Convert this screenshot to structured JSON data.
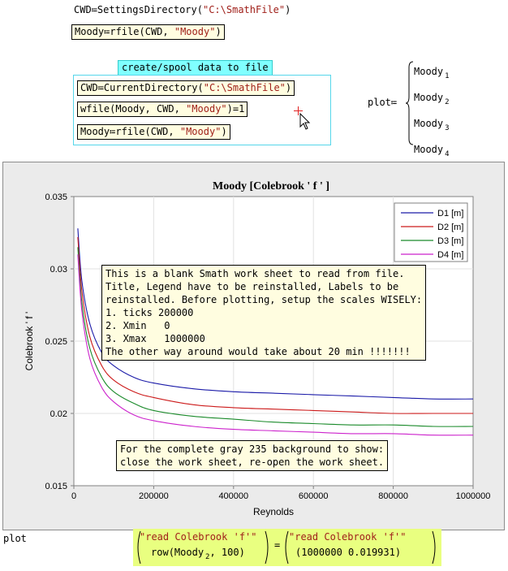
{
  "top": {
    "cwd_lhs": "CWD",
    "assign_op": "≔",
    "cwd_func": "SettingsDirectory",
    "cwd_arg": "\"C:\\SmathFile\"",
    "moody_lhs": "Moody",
    "rfile_func": "rfile",
    "rfile_arg1": "CWD",
    "rfile_arg2": "\"Moody\""
  },
  "area": {
    "title": "create/spool data to file",
    "line1_lhs": "CWD",
    "line1_func": "CurrentDirectory",
    "line1_arg": "\"C:\\SmathFile\"",
    "line2_func": "wfile",
    "line2_arg1": "Moody",
    "line2_arg2": "CWD",
    "line2_arg3": "\"Moody\"",
    "line2_result": "1",
    "line3_lhs": "Moody",
    "line3_func": "rfile",
    "line3_arg1": "CWD",
    "line3_arg2": "\"Moody\""
  },
  "plot_def": {
    "lhs": "plot",
    "items": [
      {
        "name": "Moody",
        "sub": "1"
      },
      {
        "name": "Moody",
        "sub": "2"
      },
      {
        "name": "Moody",
        "sub": "3"
      },
      {
        "name": "Moody",
        "sub": "4"
      }
    ]
  },
  "chart_data": {
    "type": "line",
    "title": "Moody [Colebrook ' f ' ]",
    "xlabel": "Reynolds",
    "ylabel": "Colebrook ' f '",
    "xlim": [
      0,
      1000000
    ],
    "ylim": [
      0.015,
      0.035
    ],
    "xticks": [
      "0",
      "200000",
      "400000",
      "600000",
      "800000",
      "1000000"
    ],
    "yticks": [
      "0.015",
      "0.02",
      "0.025",
      "0.03",
      "0.035"
    ],
    "grid": true,
    "legend": "top-right",
    "series": [
      {
        "name": "D1 [m]",
        "color": "#1a1aa8",
        "x": [
          10000,
          20000,
          40000,
          70000,
          100000,
          150000,
          200000,
          300000,
          400000,
          500000,
          600000,
          700000,
          800000,
          900000,
          1000000
        ],
        "y": [
          0.0328,
          0.0292,
          0.0262,
          0.0242,
          0.0233,
          0.0225,
          0.0221,
          0.0217,
          0.0215,
          0.0214,
          0.0213,
          0.0212,
          0.0211,
          0.021,
          0.021
        ]
      },
      {
        "name": "D2 [m]",
        "color": "#cc1a1a",
        "x": [
          10000,
          20000,
          40000,
          70000,
          100000,
          150000,
          200000,
          300000,
          400000,
          500000,
          600000,
          700000,
          800000,
          900000,
          1000000
        ],
        "y": [
          0.0322,
          0.0285,
          0.0253,
          0.0233,
          0.0223,
          0.0215,
          0.0211,
          0.0206,
          0.0204,
          0.0203,
          0.0202,
          0.0201,
          0.02,
          0.02,
          0.02
        ]
      },
      {
        "name": "D3 [m]",
        "color": "#1a8a2a",
        "x": [
          10000,
          20000,
          40000,
          70000,
          100000,
          150000,
          200000,
          300000,
          400000,
          500000,
          600000,
          700000,
          800000,
          900000,
          1000000
        ],
        "y": [
          0.0315,
          0.0277,
          0.0245,
          0.0225,
          0.0215,
          0.0207,
          0.0202,
          0.0198,
          0.0196,
          0.0194,
          0.0193,
          0.0192,
          0.0192,
          0.0191,
          0.0191
        ]
      },
      {
        "name": "D4 [m]",
        "color": "#cc22cc",
        "x": [
          10000,
          20000,
          40000,
          70000,
          100000,
          150000,
          200000,
          300000,
          400000,
          500000,
          600000,
          700000,
          800000,
          900000,
          1000000
        ],
        "y": [
          0.031,
          0.0271,
          0.0238,
          0.0218,
          0.0208,
          0.0199,
          0.0195,
          0.0191,
          0.0189,
          0.0188,
          0.0187,
          0.0186,
          0.0186,
          0.0185,
          0.0185
        ]
      }
    ]
  },
  "notes": {
    "note1": "This is a blank Smath work sheet to read from file.\nTitle, Legend have to be reinstalled, Labels to be\nreinstalled. Before plotting, setup the scales WISELY:\n1. ticks 200000\n2. Xmin   0\n3. Xmax   1000000\nThe other way around would take about 20 min !!!!!!!",
    "note2": "For the complete gray 235 background to show:\nclose the work sheet, re-open the work sheet."
  },
  "bottom": {
    "plot_label": "plot",
    "lhs_str": "\"read Colebrook 'f'\"",
    "row_func": "row",
    "row_arg_name": "Moody",
    "row_arg_sub": "2",
    "row_arg_n": "100",
    "eq": "=",
    "rhs_str": "\"read Colebrook 'f'\"",
    "rhs_v1": "1000000",
    "rhs_v2": "0.019931"
  }
}
